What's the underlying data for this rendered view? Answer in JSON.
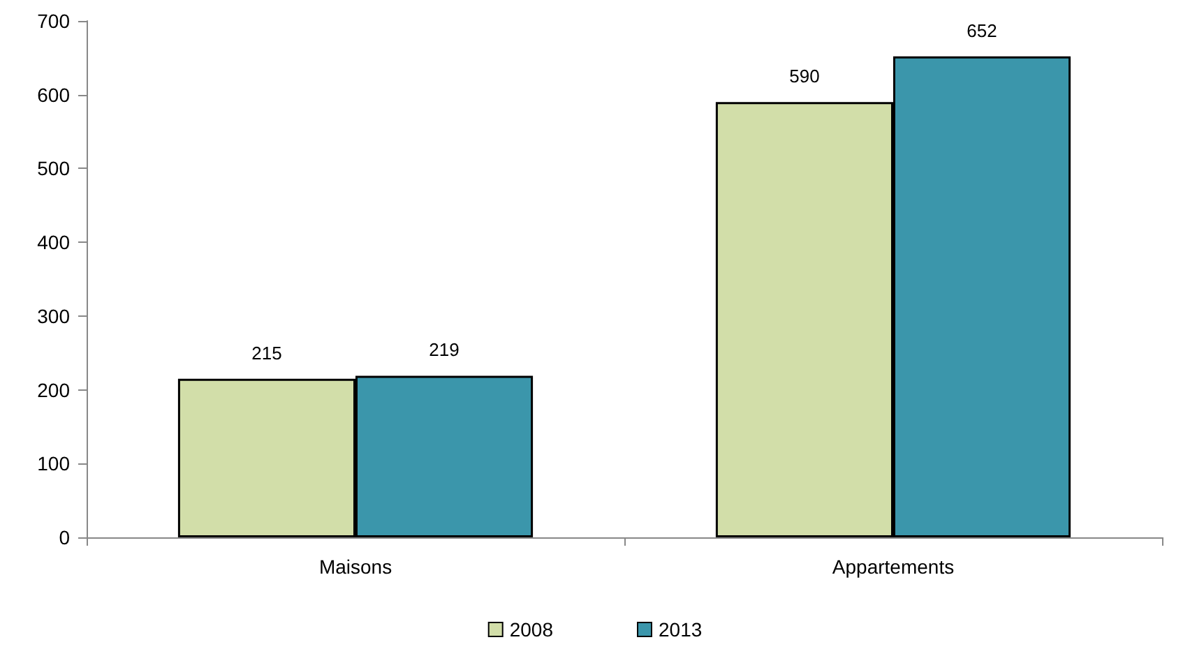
{
  "chart_data": {
    "type": "bar",
    "categories": [
      "Maisons",
      "Appartements"
    ],
    "series": [
      {
        "name": "2008",
        "color": "#d2dea9",
        "values": [
          215,
          590
        ]
      },
      {
        "name": "2013",
        "color": "#3b96ab",
        "values": [
          219,
          652
        ]
      }
    ],
    "ylim": [
      0,
      700
    ],
    "yticks": [
      0,
      100,
      200,
      300,
      400,
      500,
      600,
      700
    ],
    "grid": false,
    "legend": "bottom",
    "data_labels": true
  }
}
